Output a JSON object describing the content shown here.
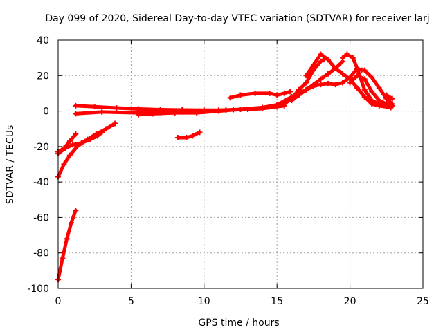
{
  "chart_data": {
    "type": "scatter",
    "title": "Day 099 of 2020, Sidereal Day-to-day VTEC variation (SDTVAR) for receiver larj",
    "xlabel": "GPS time / hours",
    "ylabel": "SDTVAR / TECUs",
    "xlim": [
      0,
      25
    ],
    "ylim": [
      -100,
      40
    ],
    "xticks": [
      0,
      5,
      10,
      15,
      20,
      25
    ],
    "yticks": [
      -100,
      -80,
      -60,
      -40,
      -20,
      0,
      20,
      40
    ],
    "grid": true,
    "legend": "none",
    "color": "#ff0000",
    "series": [
      {
        "values": [
          [
            0.0,
            -95
          ],
          [
            0.3,
            -83
          ],
          [
            0.6,
            -72
          ],
          [
            0.9,
            -63
          ],
          [
            1.2,
            -56
          ]
        ]
      },
      {
        "values": [
          [
            0.0,
            -37
          ],
          [
            0.4,
            -30
          ],
          [
            0.8,
            -25
          ],
          [
            1.3,
            -20
          ],
          [
            2.0,
            -16
          ],
          [
            2.6,
            -13
          ],
          [
            3.3,
            -10
          ],
          [
            3.9,
            -7
          ]
        ]
      },
      {
        "values": [
          [
            0.0,
            -24
          ],
          [
            0.5,
            -21
          ],
          [
            1.0,
            -19
          ],
          [
            1.6,
            -18
          ],
          [
            2.2,
            -16
          ],
          [
            2.7,
            -14
          ],
          [
            3.0,
            -12
          ]
        ]
      },
      {
        "values": [
          [
            0.0,
            -23
          ],
          [
            0.4,
            -21
          ],
          [
            0.8,
            -17
          ],
          [
            1.2,
            -13
          ]
        ]
      },
      {
        "values": [
          [
            1.2,
            3
          ],
          [
            2.5,
            2.5
          ],
          [
            4.0,
            1.8
          ],
          [
            5.5,
            1.2
          ],
          [
            7.0,
            0.8
          ],
          [
            8.5,
            0.6
          ],
          [
            10.0,
            0.5
          ],
          [
            11.0,
            0.5
          ],
          [
            12.0,
            0.8
          ],
          [
            13.0,
            1.0
          ],
          [
            14.0,
            1.4
          ],
          [
            15.0,
            2.5
          ],
          [
            15.5,
            3.0
          ]
        ]
      },
      {
        "values": [
          [
            1.2,
            -1.5
          ],
          [
            3.0,
            -0.5
          ],
          [
            5.5,
            -1.0
          ],
          [
            7.0,
            -0.8
          ],
          [
            8.5,
            -0.4
          ],
          [
            10.0,
            -0.2
          ],
          [
            11.5,
            0.5
          ],
          [
            13.0,
            1.0
          ],
          [
            14.0,
            1.5
          ],
          [
            15.0,
            3.0
          ],
          [
            15.5,
            4.0
          ],
          [
            16.0,
            7.0
          ],
          [
            16.5,
            12.0
          ],
          [
            17.0,
            16.0
          ],
          [
            17.5,
            23.0
          ],
          [
            18.0,
            28.0
          ],
          [
            18.2,
            29.0
          ]
        ]
      },
      {
        "values": [
          [
            5.5,
            -2.0
          ],
          [
            6.5,
            -1.5
          ],
          [
            8.0,
            -1.0
          ],
          [
            9.5,
            -1.0
          ],
          [
            11.0,
            0.0
          ],
          [
            12.5,
            1.0
          ],
          [
            14.0,
            2.0
          ],
          [
            15.0,
            3.5
          ],
          [
            16.0,
            8.0
          ],
          [
            16.5,
            10.0
          ],
          [
            17.0,
            12.0
          ],
          [
            17.5,
            14.0
          ],
          [
            18.0,
            15.0
          ],
          [
            18.5,
            15.5
          ],
          [
            19.0,
            15.0
          ],
          [
            19.5,
            16.0
          ],
          [
            20.0,
            19.0
          ],
          [
            20.5,
            24.0
          ],
          [
            20.8,
            23.0
          ]
        ]
      },
      {
        "values": [
          [
            16.0,
            6.0
          ],
          [
            16.5,
            9.0
          ],
          [
            17.0,
            12.0
          ],
          [
            17.5,
            15.0
          ],
          [
            18.0,
            18.0
          ],
          [
            18.5,
            21.0
          ],
          [
            19.0,
            24.0
          ],
          [
            19.5,
            28.0
          ]
        ]
      },
      {
        "values": [
          [
            17.0,
            20.0
          ],
          [
            17.5,
            26.0
          ],
          [
            18.0,
            32.0
          ],
          [
            18.5,
            29.0
          ],
          [
            19.0,
            24.0
          ],
          [
            19.5,
            21.0
          ],
          [
            20.0,
            18.0
          ],
          [
            20.5,
            13.0
          ],
          [
            21.0,
            8.0
          ],
          [
            21.5,
            4.0
          ],
          [
            22.0,
            3.0
          ],
          [
            22.8,
            2.0
          ]
        ]
      },
      {
        "values": [
          [
            19.5,
            30.0
          ],
          [
            19.8,
            32.0
          ],
          [
            20.2,
            30.0
          ],
          [
            20.5,
            24.0
          ],
          [
            21.0,
            12.0
          ],
          [
            21.5,
            6.0
          ],
          [
            22.0,
            4.0
          ],
          [
            22.8,
            3.0
          ]
        ]
      },
      {
        "values": [
          [
            20.0,
            16.0
          ],
          [
            20.5,
            20.0
          ],
          [
            21.0,
            18.0
          ],
          [
            21.5,
            11.0
          ],
          [
            22.0,
            6.0
          ],
          [
            22.5,
            4.0
          ],
          [
            22.9,
            3.0
          ]
        ]
      },
      {
        "values": [
          [
            21.0,
            23.0
          ],
          [
            21.5,
            19.0
          ],
          [
            22.0,
            13.0
          ],
          [
            22.5,
            7.0
          ],
          [
            22.9,
            4.0
          ]
        ]
      },
      {
        "values": [
          [
            11.8,
            7.5
          ],
          [
            12.5,
            9.0
          ],
          [
            13.5,
            10.0
          ],
          [
            14.5,
            10.0
          ],
          [
            15.0,
            9.0
          ],
          [
            15.5,
            10.0
          ],
          [
            15.9,
            11.0
          ]
        ]
      },
      {
        "values": [
          [
            8.2,
            -15.0
          ],
          [
            8.8,
            -15.0
          ],
          [
            9.2,
            -14.0
          ],
          [
            9.7,
            -12.0
          ]
        ]
      },
      {
        "values": [
          [
            22.5,
            9.0
          ],
          [
            22.9,
            7.0
          ]
        ]
      }
    ]
  }
}
